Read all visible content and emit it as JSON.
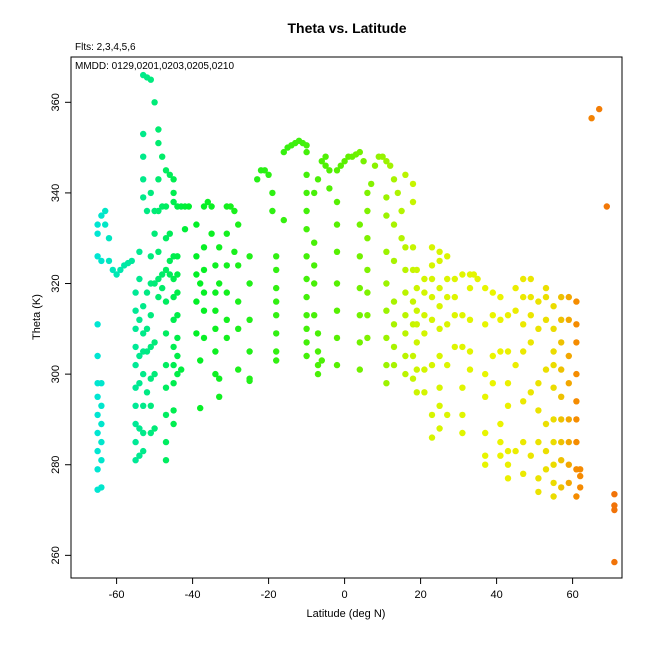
{
  "chart_data": {
    "type": "scatter",
    "title": "Theta vs. Latitude",
    "subtitle_fits": "Flts: 2,3,4,5,6",
    "annotation_mmdd": "MMDD: 0129,0201,0203,0205,0210",
    "xlabel": "Latitude (deg N)",
    "ylabel": "Theta (K)",
    "xlim": [
      -72,
      73
    ],
    "ylim": [
      255,
      370
    ],
    "x_ticks": [
      -60,
      -40,
      -20,
      0,
      20,
      40,
      60
    ],
    "y_ticks": [
      260,
      280,
      300,
      320,
      340,
      360
    ],
    "grid": false,
    "color_scale": "latitude (cyan south -> green -> yellow -> orange north)",
    "points": [
      [
        -65,
        274.5
      ],
      [
        -65,
        279
      ],
      [
        -65,
        283
      ],
      [
        -65,
        287
      ],
      [
        -65,
        291
      ],
      [
        -65,
        295
      ],
      [
        -65,
        298
      ],
      [
        -65,
        304
      ],
      [
        -65,
        311
      ],
      [
        -65,
        326
      ],
      [
        -65,
        331
      ],
      [
        -65,
        333
      ],
      [
        -64,
        275
      ],
      [
        -64,
        281
      ],
      [
        -64,
        285
      ],
      [
        -64,
        289
      ],
      [
        -64,
        293
      ],
      [
        -64,
        298
      ],
      [
        -64,
        325
      ],
      [
        -64,
        335
      ],
      [
        -63,
        336
      ],
      [
        -63,
        333
      ],
      [
        -62,
        330
      ],
      [
        -62,
        325
      ],
      [
        -61,
        323
      ],
      [
        -60,
        322
      ],
      [
        -59,
        323
      ],
      [
        -58,
        324
      ],
      [
        -57,
        324.5
      ],
      [
        -56,
        325
      ],
      [
        -55,
        281
      ],
      [
        -55,
        285
      ],
      [
        -55,
        289
      ],
      [
        -55,
        293
      ],
      [
        -55,
        297
      ],
      [
        -55,
        302
      ],
      [
        -55,
        306
      ],
      [
        -55,
        310
      ],
      [
        -55,
        314
      ],
      [
        -55,
        318
      ],
      [
        -54,
        282
      ],
      [
        -54,
        288
      ],
      [
        -54,
        298
      ],
      [
        -54,
        304
      ],
      [
        -54,
        312
      ],
      [
        -54,
        321
      ],
      [
        -54,
        327
      ],
      [
        -53,
        283
      ],
      [
        -53,
        287
      ],
      [
        -53,
        293
      ],
      [
        -53,
        300
      ],
      [
        -53,
        305
      ],
      [
        -53,
        309
      ],
      [
        -53,
        315
      ],
      [
        -53,
        339
      ],
      [
        -53,
        343
      ],
      [
        -53,
        348
      ],
      [
        -53,
        353
      ],
      [
        -53,
        366
      ],
      [
        -52,
        296
      ],
      [
        -52,
        305
      ],
      [
        -52,
        310
      ],
      [
        -52,
        318
      ],
      [
        -52,
        336
      ],
      [
        -52,
        365.5
      ],
      [
        -51,
        287
      ],
      [
        -51,
        293
      ],
      [
        -51,
        299
      ],
      [
        -51,
        306
      ],
      [
        -51,
        313
      ],
      [
        -51,
        320
      ],
      [
        -51,
        326
      ],
      [
        -51,
        340
      ],
      [
        -51,
        365
      ],
      [
        -50,
        288
      ],
      [
        -50,
        300
      ],
      [
        -50,
        307
      ],
      [
        -50,
        320
      ],
      [
        -50,
        331
      ],
      [
        -50,
        336
      ],
      [
        -50,
        360
      ],
      [
        -49,
        317
      ],
      [
        -49,
        321
      ],
      [
        -49,
        327
      ],
      [
        -49,
        336
      ],
      [
        -49,
        343
      ],
      [
        -49,
        351
      ],
      [
        -49,
        354
      ],
      [
        -48,
        319
      ],
      [
        -48,
        322
      ],
      [
        -48,
        337
      ],
      [
        -48,
        348
      ],
      [
        -47,
        281
      ],
      [
        -47,
        285
      ],
      [
        -47,
        291
      ],
      [
        -47,
        297
      ],
      [
        -47,
        302
      ],
      [
        -47,
        309
      ],
      [
        -47,
        316
      ],
      [
        -47,
        323
      ],
      [
        -47,
        330
      ],
      [
        -47,
        337
      ],
      [
        -47,
        345
      ],
      [
        -46,
        322
      ],
      [
        -46,
        325
      ],
      [
        -46,
        331
      ],
      [
        -46,
        344
      ],
      [
        -45,
        289
      ],
      [
        -45,
        292
      ],
      [
        -45,
        298
      ],
      [
        -45,
        302
      ],
      [
        -45,
        306
      ],
      [
        -45,
        312
      ],
      [
        -45,
        317
      ],
      [
        -45,
        321
      ],
      [
        -45,
        326
      ],
      [
        -45,
        338
      ],
      [
        -45,
        340
      ],
      [
        -45,
        343
      ],
      [
        -44,
        300
      ],
      [
        -44,
        304
      ],
      [
        -44,
        308
      ],
      [
        -44,
        313
      ],
      [
        -44,
        318
      ],
      [
        -44,
        322
      ],
      [
        -44,
        326
      ],
      [
        -44,
        337
      ],
      [
        -43,
        301
      ],
      [
        -43,
        337
      ],
      [
        -42,
        332
      ],
      [
        -42,
        337
      ],
      [
        -41,
        337
      ],
      [
        -39,
        309
      ],
      [
        -39,
        316
      ],
      [
        -39,
        322
      ],
      [
        -39,
        326
      ],
      [
        -39,
        333
      ],
      [
        -38,
        292.5
      ],
      [
        -38,
        303
      ],
      [
        -38,
        320
      ],
      [
        -37,
        308
      ],
      [
        -37,
        314
      ],
      [
        -37,
        318
      ],
      [
        -37,
        323
      ],
      [
        -37,
        328
      ],
      [
        -37,
        337
      ],
      [
        -36,
        338
      ],
      [
        -35,
        337
      ],
      [
        -35,
        331
      ],
      [
        -34,
        300
      ],
      [
        -34,
        305
      ],
      [
        -34,
        310
      ],
      [
        -34,
        314
      ],
      [
        -34,
        318
      ],
      [
        -34,
        324
      ],
      [
        -33,
        295
      ],
      [
        -33,
        299
      ],
      [
        -33,
        320
      ],
      [
        -33,
        328
      ],
      [
        -31,
        308
      ],
      [
        -31,
        312
      ],
      [
        -31,
        318
      ],
      [
        -31,
        324
      ],
      [
        -31,
        331
      ],
      [
        -31,
        337
      ],
      [
        -30,
        337
      ],
      [
        -29,
        336
      ],
      [
        -29,
        327
      ],
      [
        -28,
        301
      ],
      [
        -28,
        310
      ],
      [
        -28,
        316
      ],
      [
        -28,
        324
      ],
      [
        -28,
        333
      ],
      [
        -25,
        298.5
      ],
      [
        -25,
        299
      ],
      [
        -25,
        305
      ],
      [
        -25,
        312
      ],
      [
        -25,
        320
      ],
      [
        -25,
        326
      ],
      [
        -23,
        343
      ],
      [
        -22,
        345
      ],
      [
        -21,
        345
      ],
      [
        -20,
        344
      ],
      [
        -19,
        340
      ],
      [
        -19,
        336
      ],
      [
        -18,
        303
      ],
      [
        -18,
        305
      ],
      [
        -18,
        309
      ],
      [
        -18,
        313
      ],
      [
        -18,
        316
      ],
      [
        -18,
        319
      ],
      [
        -18,
        323
      ],
      [
        -18,
        326
      ],
      [
        -16,
        334
      ],
      [
        -16,
        349
      ],
      [
        -15,
        350
      ],
      [
        -14,
        350.5
      ],
      [
        -13,
        351
      ],
      [
        -12,
        351.5
      ],
      [
        -11,
        351
      ],
      [
        -10,
        350.5
      ],
      [
        -10,
        349
      ],
      [
        -10,
        304
      ],
      [
        -10,
        307
      ],
      [
        -10,
        310
      ],
      [
        -10,
        313
      ],
      [
        -10,
        317
      ],
      [
        -10,
        321
      ],
      [
        -10,
        326
      ],
      [
        -10,
        332
      ],
      [
        -10,
        336
      ],
      [
        -10,
        340
      ],
      [
        -10,
        344
      ],
      [
        -8,
        313
      ],
      [
        -8,
        320
      ],
      [
        -8,
        324
      ],
      [
        -8,
        329
      ],
      [
        -8,
        340
      ],
      [
        -7,
        300
      ],
      [
        -7,
        302
      ],
      [
        -7,
        305
      ],
      [
        -7,
        309
      ],
      [
        -7,
        343
      ],
      [
        -6,
        303
      ],
      [
        -6,
        347
      ],
      [
        -5,
        348
      ],
      [
        -5,
        346
      ],
      [
        -4,
        345
      ],
      [
        -4,
        341
      ],
      [
        -2,
        302
      ],
      [
        -2,
        308
      ],
      [
        -2,
        314
      ],
      [
        -2,
        320
      ],
      [
        -2,
        327
      ],
      [
        -2,
        333
      ],
      [
        -2,
        338
      ],
      [
        -2,
        345
      ],
      [
        -1,
        346
      ],
      [
        0,
        347
      ],
      [
        1,
        348
      ],
      [
        2,
        348
      ],
      [
        3,
        348.5
      ],
      [
        4,
        349
      ],
      [
        5,
        347
      ],
      [
        4,
        301
      ],
      [
        4,
        307
      ],
      [
        4,
        313
      ],
      [
        4,
        319
      ],
      [
        4,
        326
      ],
      [
        4,
        333
      ],
      [
        6,
        308
      ],
      [
        6,
        313
      ],
      [
        6,
        318
      ],
      [
        6,
        323
      ],
      [
        6,
        330
      ],
      [
        6,
        336
      ],
      [
        6,
        340
      ],
      [
        7,
        342
      ],
      [
        8,
        346
      ],
      [
        9,
        348
      ],
      [
        10,
        348
      ],
      [
        11,
        347
      ],
      [
        12,
        346
      ],
      [
        13,
        343
      ],
      [
        11,
        298
      ],
      [
        11,
        302
      ],
      [
        11,
        308
      ],
      [
        11,
        314
      ],
      [
        11,
        320
      ],
      [
        11,
        327
      ],
      [
        11,
        335
      ],
      [
        11,
        339
      ],
      [
        13,
        302
      ],
      [
        13,
        306
      ],
      [
        13,
        311
      ],
      [
        13,
        316
      ],
      [
        13,
        325
      ],
      [
        13,
        333
      ],
      [
        14,
        340
      ],
      [
        15,
        336
      ],
      [
        15,
        330
      ],
      [
        16,
        300
      ],
      [
        16,
        304
      ],
      [
        16,
        309
      ],
      [
        16,
        313
      ],
      [
        16,
        318
      ],
      [
        16,
        323
      ],
      [
        16,
        328
      ],
      [
        16,
        344
      ],
      [
        18,
        299
      ],
      [
        18,
        304
      ],
      [
        18,
        311
      ],
      [
        18,
        316
      ],
      [
        18,
        323
      ],
      [
        18,
        328
      ],
      [
        18,
        338
      ],
      [
        18,
        342
      ],
      [
        19,
        296
      ],
      [
        19,
        301
      ],
      [
        19,
        307
      ],
      [
        19,
        311
      ],
      [
        19,
        314
      ],
      [
        19,
        319
      ],
      [
        19,
        323
      ],
      [
        21,
        296
      ],
      [
        21,
        301
      ],
      [
        21,
        309
      ],
      [
        21,
        313
      ],
      [
        21,
        318
      ],
      [
        21,
        321
      ],
      [
        23,
        286
      ],
      [
        23,
        291
      ],
      [
        23,
        302
      ],
      [
        23,
        312
      ],
      [
        23,
        317
      ],
      [
        23,
        321
      ],
      [
        23,
        324
      ],
      [
        23,
        328
      ],
      [
        25,
        288
      ],
      [
        25,
        293
      ],
      [
        25,
        297
      ],
      [
        25,
        304
      ],
      [
        25,
        310
      ],
      [
        25,
        315
      ],
      [
        25,
        319
      ],
      [
        25,
        325
      ],
      [
        25,
        327
      ],
      [
        27,
        291
      ],
      [
        27,
        302
      ],
      [
        27,
        311
      ],
      [
        27,
        317
      ],
      [
        27,
        321
      ],
      [
        27,
        326
      ],
      [
        29,
        306
      ],
      [
        29,
        313
      ],
      [
        29,
        317
      ],
      [
        29,
        321
      ],
      [
        31,
        287
      ],
      [
        31,
        291
      ],
      [
        31,
        297
      ],
      [
        31,
        306
      ],
      [
        31,
        313
      ],
      [
        31,
        322
      ],
      [
        33,
        301
      ],
      [
        33,
        305
      ],
      [
        33,
        312
      ],
      [
        33,
        319
      ],
      [
        33,
        322
      ],
      [
        34,
        322
      ],
      [
        35,
        321
      ],
      [
        37,
        280
      ],
      [
        37,
        282
      ],
      [
        37,
        287
      ],
      [
        37,
        295
      ],
      [
        37,
        300
      ],
      [
        37,
        311
      ],
      [
        37,
        319
      ],
      [
        39,
        298
      ],
      [
        39,
        304
      ],
      [
        39,
        313
      ],
      [
        39,
        318
      ],
      [
        41,
        282
      ],
      [
        41,
        285
      ],
      [
        41,
        289
      ],
      [
        41,
        305
      ],
      [
        41,
        312
      ],
      [
        41,
        317
      ],
      [
        43,
        277
      ],
      [
        43,
        280
      ],
      [
        43,
        283
      ],
      [
        43,
        293
      ],
      [
        43,
        298
      ],
      [
        43,
        305
      ],
      [
        43,
        313
      ],
      [
        45,
        283
      ],
      [
        45,
        302
      ],
      [
        45,
        314
      ],
      [
        45,
        319
      ],
      [
        47,
        278
      ],
      [
        47,
        285
      ],
      [
        47,
        294
      ],
      [
        47,
        305
      ],
      [
        47,
        311
      ],
      [
        47,
        317
      ],
      [
        47,
        321
      ],
      [
        49,
        282
      ],
      [
        49,
        296
      ],
      [
        49,
        307
      ],
      [
        49,
        313
      ],
      [
        49,
        317
      ],
      [
        49,
        321
      ],
      [
        51,
        274
      ],
      [
        51,
        277
      ],
      [
        51,
        285
      ],
      [
        51,
        292
      ],
      [
        51,
        298
      ],
      [
        51,
        310
      ],
      [
        51,
        316
      ],
      [
        53,
        279
      ],
      [
        53,
        283
      ],
      [
        53,
        289
      ],
      [
        53,
        301
      ],
      [
        53,
        312
      ],
      [
        53,
        317
      ],
      [
        53,
        319
      ],
      [
        55,
        273
      ],
      [
        55,
        276
      ],
      [
        55,
        280
      ],
      [
        55,
        285
      ],
      [
        55,
        290
      ],
      [
        55,
        297
      ],
      [
        55,
        302
      ],
      [
        55,
        305
      ],
      [
        55,
        310
      ],
      [
        55,
        315
      ],
      [
        57,
        275
      ],
      [
        57,
        281
      ],
      [
        57,
        285
      ],
      [
        57,
        290
      ],
      [
        57,
        295
      ],
      [
        57,
        301
      ],
      [
        57,
        307
      ],
      [
        57,
        312
      ],
      [
        57,
        317
      ],
      [
        59,
        276
      ],
      [
        59,
        280
      ],
      [
        59,
        285
      ],
      [
        59,
        290
      ],
      [
        59,
        298
      ],
      [
        59,
        304
      ],
      [
        59,
        312
      ],
      [
        59,
        317
      ],
      [
        61,
        273
      ],
      [
        61,
        279
      ],
      [
        61,
        285
      ],
      [
        61,
        290
      ],
      [
        61,
        294
      ],
      [
        61,
        300
      ],
      [
        61,
        307
      ],
      [
        61,
        311
      ],
      [
        61,
        316
      ],
      [
        62,
        275
      ],
      [
        62,
        277.5
      ],
      [
        62,
        279
      ],
      [
        65,
        356.5
      ],
      [
        67,
        358.5
      ],
      [
        69,
        337
      ],
      [
        71,
        258.5
      ],
      [
        71,
        270
      ],
      [
        71,
        271
      ],
      [
        71,
        273.5
      ]
    ]
  }
}
